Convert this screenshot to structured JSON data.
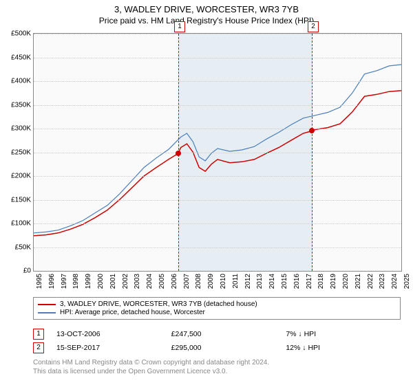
{
  "title": "3, WADLEY DRIVE, WORCESTER, WR3 7YB",
  "subtitle": "Price paid vs. HM Land Registry's House Price Index (HPI)",
  "chart": {
    "type": "line",
    "background_color": "#fafafa",
    "grid_color": "#cccccc",
    "border_color": "#888888",
    "shaded_band_color": "#d6e4ef",
    "shaded_band": {
      "x_from": 2006.8,
      "x_to": 2017.7
    },
    "xlim": [
      1995,
      2025
    ],
    "ylim": [
      0,
      500000
    ],
    "ytick_step": 50000,
    "ytick_prefix": "£",
    "ytick_labels": [
      "£0",
      "£50K",
      "£100K",
      "£150K",
      "£200K",
      "£250K",
      "£300K",
      "£350K",
      "£400K",
      "£450K",
      "£500K"
    ],
    "xticks": [
      1995,
      1996,
      1997,
      1998,
      1999,
      2000,
      2001,
      2002,
      2003,
      2004,
      2005,
      2006,
      2007,
      2008,
      2009,
      2010,
      2011,
      2012,
      2013,
      2014,
      2015,
      2016,
      2017,
      2018,
      2019,
      2020,
      2021,
      2022,
      2023,
      2024,
      2025
    ],
    "xtick_fontsize": 10,
    "ytick_fontsize": 10,
    "series": [
      {
        "name": "property",
        "label": "3, WADLEY DRIVE, WORCESTER, WR3 7YB (detached house)",
        "color": "#cc0000",
        "line_width": 1.5,
        "data": [
          [
            1995,
            74000
          ],
          [
            1996,
            76000
          ],
          [
            1997,
            80000
          ],
          [
            1998,
            88000
          ],
          [
            1999,
            98000
          ],
          [
            2000,
            112000
          ],
          [
            2001,
            128000
          ],
          [
            2002,
            150000
          ],
          [
            2003,
            175000
          ],
          [
            2004,
            200000
          ],
          [
            2005,
            218000
          ],
          [
            2006,
            235000
          ],
          [
            2006.8,
            247500
          ],
          [
            2007,
            260000
          ],
          [
            2007.5,
            268000
          ],
          [
            2008,
            250000
          ],
          [
            2008.5,
            218000
          ],
          [
            2009,
            210000
          ],
          [
            2009.5,
            225000
          ],
          [
            2010,
            235000
          ],
          [
            2011,
            228000
          ],
          [
            2012,
            230000
          ],
          [
            2013,
            235000
          ],
          [
            2014,
            248000
          ],
          [
            2015,
            260000
          ],
          [
            2016,
            275000
          ],
          [
            2017,
            290000
          ],
          [
            2017.7,
            295000
          ],
          [
            2018,
            298000
          ],
          [
            2019,
            302000
          ],
          [
            2020,
            310000
          ],
          [
            2021,
            335000
          ],
          [
            2022,
            368000
          ],
          [
            2023,
            372000
          ],
          [
            2024,
            378000
          ],
          [
            2025,
            380000
          ]
        ]
      },
      {
        "name": "hpi",
        "label": "HPI: Average price, detached house, Worcester",
        "color": "#4a7ebb",
        "line_width": 1.2,
        "data": [
          [
            1995,
            80000
          ],
          [
            1996,
            82000
          ],
          [
            1997,
            86000
          ],
          [
            1998,
            95000
          ],
          [
            1999,
            106000
          ],
          [
            2000,
            122000
          ],
          [
            2001,
            138000
          ],
          [
            2002,
            162000
          ],
          [
            2003,
            190000
          ],
          [
            2004,
            218000
          ],
          [
            2005,
            238000
          ],
          [
            2006,
            256000
          ],
          [
            2007,
            282000
          ],
          [
            2007.5,
            290000
          ],
          [
            2008,
            272000
          ],
          [
            2008.5,
            240000
          ],
          [
            2009,
            232000
          ],
          [
            2009.5,
            248000
          ],
          [
            2010,
            258000
          ],
          [
            2011,
            252000
          ],
          [
            2012,
            255000
          ],
          [
            2013,
            262000
          ],
          [
            2014,
            278000
          ],
          [
            2015,
            292000
          ],
          [
            2016,
            308000
          ],
          [
            2017,
            322000
          ],
          [
            2018,
            328000
          ],
          [
            2019,
            334000
          ],
          [
            2020,
            345000
          ],
          [
            2021,
            375000
          ],
          [
            2022,
            415000
          ],
          [
            2023,
            422000
          ],
          [
            2024,
            432000
          ],
          [
            2025,
            435000
          ]
        ]
      }
    ],
    "markers": [
      {
        "num": "1",
        "x": 2006.8,
        "y": 247500,
        "color": "#cc0000"
      },
      {
        "num": "2",
        "x": 2017.7,
        "y": 295000,
        "color": "#cc0000"
      }
    ]
  },
  "legend": {
    "border_color": "#888888",
    "items": [
      {
        "color": "#cc0000",
        "label": "3, WADLEY DRIVE, WORCESTER, WR3 7YB (detached house)"
      },
      {
        "color": "#4a7ebb",
        "label": "HPI: Average price, detached house, Worcester"
      }
    ]
  },
  "sales": [
    {
      "num": "1",
      "date": "13-OCT-2006",
      "price": "£247,500",
      "delta": "7% ↓ HPI"
    },
    {
      "num": "2",
      "date": "15-SEP-2017",
      "price": "£295,000",
      "delta": "12% ↓ HPI"
    }
  ],
  "footnote_line1": "Contains HM Land Registry data © Crown copyright and database right 2024.",
  "footnote_line2": "This data is licensed under the Open Government Licence v3.0."
}
